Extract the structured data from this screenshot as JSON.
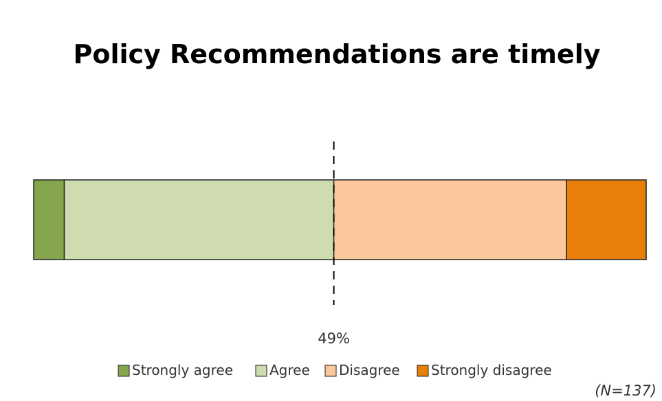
{
  "chart_data": {
    "type": "bar",
    "orientation": "horizontal",
    "stacked": true,
    "normalized": true,
    "title": "Policy Recommendations are timely",
    "xlabel": "",
    "ylabel": "",
    "categories": [
      ""
    ],
    "series": [
      {
        "name": "Strongly agree",
        "values": [
          5
        ],
        "color": "#85a64d"
      },
      {
        "name": "Agree",
        "values": [
          44
        ],
        "color": "#cfdcb0"
      },
      {
        "name": "Disagree",
        "values": [
          38
        ],
        "color": "#fbc89e"
      },
      {
        "name": "Strongly disagree",
        "values": [
          13
        ],
        "color": "#e87f0b"
      }
    ],
    "xlim": [
      0,
      100
    ],
    "midpoint": {
      "value": 49,
      "label": "49%",
      "style": "dashed-line"
    },
    "legend_position": "bottom",
    "grid": false,
    "sample_note": "(N=137)"
  }
}
